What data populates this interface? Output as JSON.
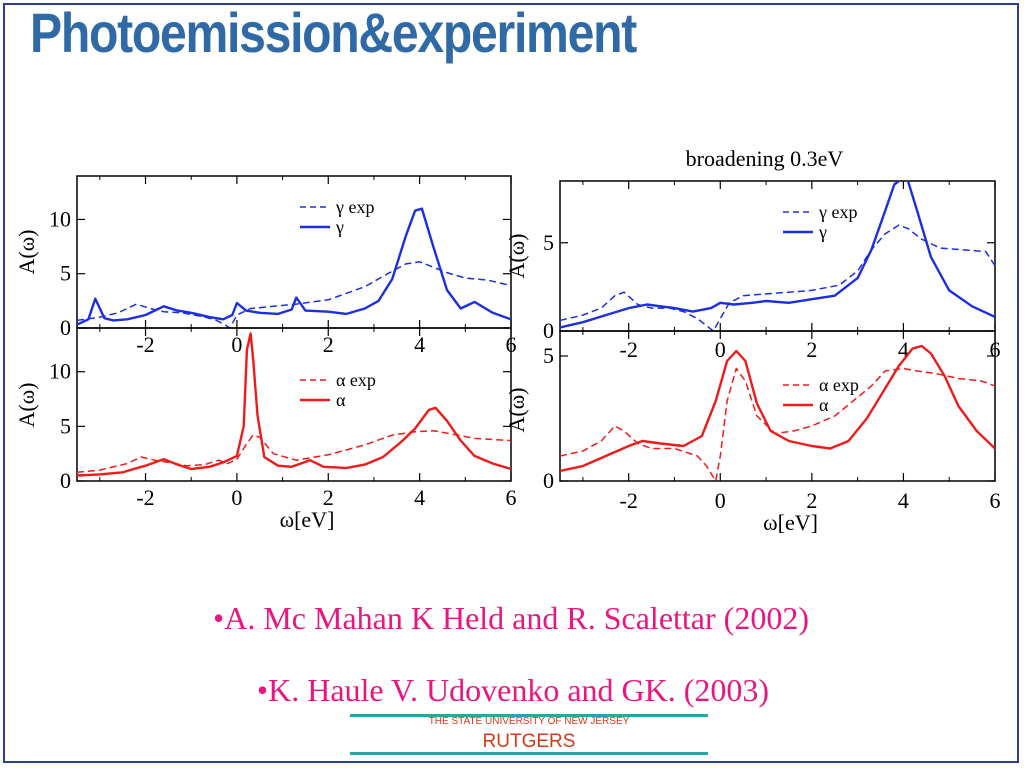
{
  "slide": {
    "title": "Photoemission&experiment",
    "references": [
      "•A. Mc Mahan K Held and R. Scalettar (2002)",
      "•K. Haule V. Udovenko and GK. (2003)"
    ],
    "logo": {
      "tagline": "THE STATE UNIVERSITY OF NEW JERSEY",
      "name": "RUTGERS"
    }
  },
  "colors": {
    "title": "#2f69a6",
    "gamma": "#1c2fe0",
    "alpha": "#ec1c1c",
    "reference": "#e8177f",
    "logo_rule": "#2aa6a0",
    "logo_text": "#d33a1a"
  },
  "chart_data": [
    {
      "type": "line",
      "title": "",
      "xlabel": "",
      "ylabel": "A(ω)",
      "xlim": [
        -3.5,
        6
      ],
      "ylim": [
        0,
        14
      ],
      "xticks": [
        -2,
        0,
        2,
        4,
        6
      ],
      "xtick_labels": [
        "-2",
        "0",
        "2",
        "4",
        "6"
      ],
      "yticks": [
        0,
        5,
        10
      ],
      "ytick_labels": [
        "0",
        "5",
        "10"
      ],
      "legend_position": "top-right",
      "series": [
        {
          "name": "γ exp",
          "style": "dashed",
          "color": "#1c2fe0",
          "x": [
            -3.5,
            -3.0,
            -2.6,
            -2.2,
            -1.9,
            -1.6,
            -1.2,
            -0.8,
            -0.5,
            -0.3,
            -0.15,
            0.0,
            0.3,
            0.8,
            1.3,
            2.0,
            2.8,
            3.3,
            3.7,
            4.0,
            4.3,
            4.6,
            5.0,
            5.5,
            6.0
          ],
          "y": [
            0.7,
            1.0,
            1.4,
            2.2,
            1.8,
            1.5,
            1.4,
            1.1,
            0.8,
            0.4,
            0.0,
            1.2,
            1.8,
            2.0,
            2.2,
            2.6,
            3.8,
            5.0,
            5.9,
            6.1,
            5.6,
            5.1,
            4.6,
            4.4,
            3.9
          ]
        },
        {
          "name": "γ",
          "style": "solid",
          "color": "#1c2fe0",
          "x": [
            -3.5,
            -3.25,
            -3.1,
            -2.9,
            -2.7,
            -2.4,
            -2.0,
            -1.6,
            -1.3,
            -1.0,
            -0.6,
            -0.3,
            -0.1,
            0.0,
            0.2,
            0.5,
            0.9,
            1.2,
            1.3,
            1.5,
            2.0,
            2.4,
            2.8,
            3.1,
            3.4,
            3.7,
            3.9,
            4.05,
            4.3,
            4.6,
            4.9,
            5.2,
            5.6,
            6.0
          ],
          "y": [
            0.3,
            0.8,
            2.7,
            0.9,
            0.7,
            0.8,
            1.2,
            2.0,
            1.6,
            1.4,
            1.0,
            0.8,
            1.2,
            2.3,
            1.6,
            1.4,
            1.3,
            1.7,
            2.8,
            1.6,
            1.5,
            1.3,
            1.8,
            2.5,
            4.5,
            8.5,
            10.8,
            11.0,
            7.5,
            3.5,
            1.8,
            2.4,
            1.4,
            0.8
          ]
        }
      ]
    },
    {
      "type": "line",
      "title": "",
      "xlabel": "ω[eV]",
      "ylabel": "A(ω)",
      "xlim": [
        -3.5,
        6
      ],
      "ylim": [
        0,
        14
      ],
      "xticks": [
        -2,
        0,
        2,
        4,
        6
      ],
      "xtick_labels": [
        "-2",
        "0",
        "2",
        "4",
        "6"
      ],
      "yticks": [
        0,
        5,
        10
      ],
      "ytick_labels": [
        "0",
        "5",
        "10"
      ],
      "legend_position": "top-right",
      "series": [
        {
          "name": "α exp",
          "style": "dashed",
          "color": "#ec1c1c",
          "x": [
            -3.5,
            -3.0,
            -2.4,
            -2.1,
            -1.8,
            -1.5,
            -1.1,
            -0.7,
            -0.4,
            -0.2,
            0.0,
            0.2,
            0.35,
            0.5,
            0.8,
            1.3,
            2.0,
            2.8,
            3.4,
            3.9,
            4.3,
            4.7,
            5.2,
            5.6,
            6.0
          ],
          "y": [
            0.8,
            1.0,
            1.6,
            2.2,
            1.9,
            1.7,
            1.4,
            1.5,
            1.9,
            1.6,
            2.0,
            3.3,
            4.2,
            4.0,
            2.5,
            1.9,
            2.4,
            3.3,
            4.2,
            4.5,
            4.6,
            4.3,
            3.9,
            3.8,
            3.7
          ]
        },
        {
          "name": "α",
          "style": "solid",
          "color": "#ec1c1c",
          "x": [
            -3.5,
            -3.0,
            -2.5,
            -2.0,
            -1.6,
            -1.3,
            -1.0,
            -0.6,
            -0.3,
            0.0,
            0.15,
            0.22,
            0.3,
            0.36,
            0.45,
            0.6,
            0.9,
            1.2,
            1.6,
            1.9,
            2.4,
            2.8,
            3.2,
            3.6,
            3.9,
            4.2,
            4.35,
            4.6,
            4.9,
            5.2,
            5.6,
            6.0
          ],
          "y": [
            0.5,
            0.6,
            0.8,
            1.4,
            2.0,
            1.5,
            1.1,
            1.3,
            1.7,
            2.3,
            5.0,
            12.0,
            13.5,
            11.0,
            6.0,
            2.2,
            1.4,
            1.3,
            1.9,
            1.3,
            1.2,
            1.5,
            2.2,
            3.6,
            4.8,
            6.5,
            6.7,
            5.5,
            3.7,
            2.3,
            1.6,
            1.1
          ]
        }
      ]
    },
    {
      "type": "line",
      "title": "broadening 0.3eV",
      "xlabel": "",
      "ylabel": "A(ω)",
      "xlim": [
        -3.5,
        6
      ],
      "ylim": [
        0,
        8.5
      ],
      "xticks": [
        -2,
        0,
        2,
        4,
        6
      ],
      "xtick_labels": [
        "-2",
        "0",
        "2",
        "4",
        "6"
      ],
      "yticks": [
        0,
        5
      ],
      "ytick_labels": [
        "0",
        "5"
      ],
      "legend_position": "top-right",
      "series": [
        {
          "name": "γ exp",
          "style": "dashed",
          "color": "#1c2fe0",
          "x": [
            -3.5,
            -3.0,
            -2.6,
            -2.3,
            -2.1,
            -1.8,
            -1.5,
            -1.1,
            -0.8,
            -0.5,
            -0.3,
            -0.15,
            0.0,
            0.2,
            0.5,
            1.0,
            1.5,
            2.0,
            2.6,
            3.0,
            3.3,
            3.6,
            3.9,
            4.1,
            4.4,
            4.8,
            5.3,
            5.8,
            6.0
          ],
          "y": [
            0.6,
            0.9,
            1.3,
            2.0,
            2.2,
            1.5,
            1.3,
            1.3,
            1.1,
            0.7,
            0.3,
            0.0,
            0.7,
            1.6,
            2.0,
            2.1,
            2.2,
            2.3,
            2.6,
            3.4,
            4.6,
            5.5,
            6.0,
            5.8,
            5.2,
            4.7,
            4.6,
            4.5,
            3.7
          ]
        },
        {
          "name": "γ",
          "style": "solid",
          "color": "#1c2fe0",
          "x": [
            -3.5,
            -3.0,
            -2.5,
            -2.0,
            -1.6,
            -1.3,
            -1.0,
            -0.6,
            -0.2,
            0.0,
            0.3,
            0.7,
            1.0,
            1.5,
            2.0,
            2.5,
            3.0,
            3.3,
            3.6,
            3.8,
            4.0,
            4.1,
            4.3,
            4.6,
            5.0,
            5.5,
            6.0
          ],
          "y": [
            0.2,
            0.5,
            0.9,
            1.3,
            1.5,
            1.4,
            1.3,
            1.1,
            1.3,
            1.6,
            1.5,
            1.6,
            1.7,
            1.6,
            1.8,
            2.0,
            3.0,
            4.6,
            6.8,
            8.3,
            8.7,
            8.5,
            6.8,
            4.2,
            2.3,
            1.4,
            0.8
          ]
        }
      ]
    },
    {
      "type": "line",
      "title": "",
      "xlabel": "ω[eV]",
      "ylabel": "A(ω)",
      "xlim": [
        -3.5,
        6
      ],
      "ylim": [
        0,
        6
      ],
      "xticks": [
        -2,
        0,
        2,
        4,
        6
      ],
      "xtick_labels": [
        "-2",
        "0",
        "2",
        "4",
        "6"
      ],
      "yticks": [
        0,
        5
      ],
      "ytick_labels": [
        "0",
        "5"
      ],
      "legend_position": "top-right",
      "series": [
        {
          "name": "α exp",
          "style": "dashed",
          "color": "#ec1c1c",
          "x": [
            -3.5,
            -3.0,
            -2.6,
            -2.3,
            -2.1,
            -1.8,
            -1.5,
            -1.0,
            -0.5,
            -0.3,
            -0.1,
            0.0,
            0.15,
            0.35,
            0.55,
            0.8,
            1.2,
            1.6,
            2.0,
            2.5,
            2.9,
            3.3,
            3.6,
            4.0,
            4.3,
            4.7,
            5.2,
            5.7,
            6.0
          ],
          "y": [
            1.0,
            1.2,
            1.6,
            2.2,
            2.0,
            1.5,
            1.3,
            1.3,
            1.0,
            0.6,
            0.0,
            1.0,
            3.2,
            4.5,
            4.0,
            2.6,
            1.9,
            2.0,
            2.2,
            2.6,
            3.2,
            3.8,
            4.4,
            4.5,
            4.4,
            4.3,
            4.1,
            4.0,
            3.8
          ]
        },
        {
          "name": "α",
          "style": "solid",
          "color": "#ec1c1c",
          "x": [
            -3.5,
            -3.0,
            -2.5,
            -2.0,
            -1.7,
            -1.3,
            -0.8,
            -0.4,
            -0.1,
            0.15,
            0.35,
            0.55,
            0.8,
            1.1,
            1.5,
            2.0,
            2.4,
            2.8,
            3.2,
            3.6,
            3.9,
            4.2,
            4.4,
            4.6,
            4.9,
            5.2,
            5.6,
            6.0
          ],
          "y": [
            0.4,
            0.6,
            1.0,
            1.4,
            1.6,
            1.5,
            1.4,
            1.8,
            3.2,
            4.8,
            5.2,
            4.8,
            3.1,
            2.0,
            1.6,
            1.4,
            1.3,
            1.6,
            2.5,
            3.7,
            4.6,
            5.3,
            5.4,
            5.1,
            4.2,
            3.0,
            2.0,
            1.3
          ]
        }
      ]
    }
  ]
}
